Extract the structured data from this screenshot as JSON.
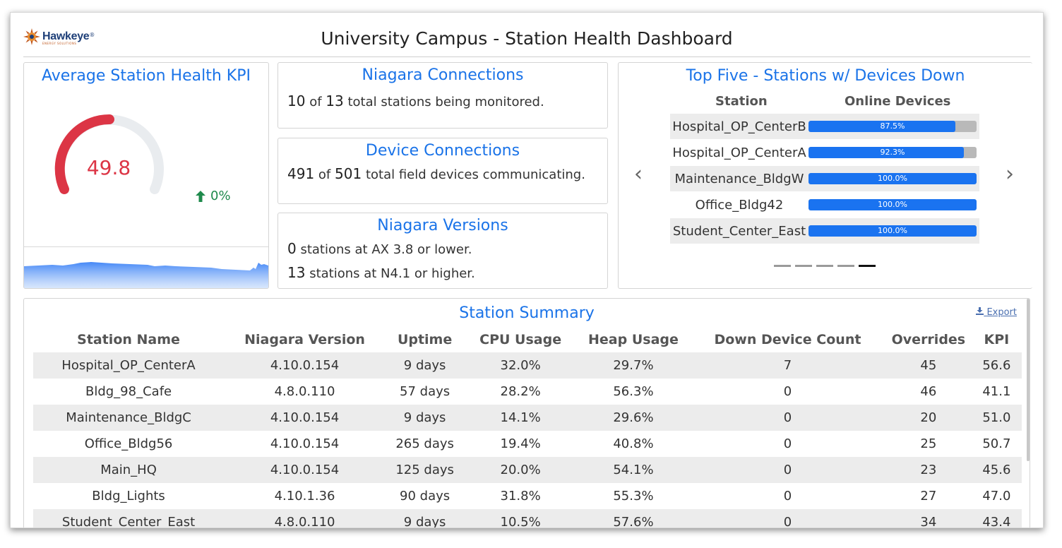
{
  "header": {
    "title": "University Campus - Station Health Dashboard",
    "logo_text": "Hawkeye",
    "logo_tagline": "ENERGY SOLUTIONS",
    "logo_mark": "®"
  },
  "kpi": {
    "title": "Average Station Health KPI",
    "value": "49.8",
    "trend": "0%",
    "gauge_fraction": 0.498
  },
  "niagara_connections": {
    "title": "Niagara Connections",
    "count": "10",
    "of": "of",
    "total": "13",
    "text": "total stations being monitored."
  },
  "device_connections": {
    "title": "Device Connections",
    "count": "491",
    "of": "of",
    "total": "501",
    "text": "total field devices communicating."
  },
  "niagara_versions": {
    "title": "Niagara Versions",
    "line1_count": "0",
    "line1_text": "stations at AX 3.8 or lower.",
    "line2_count": "13",
    "line2_text": "stations at N4.1 or higher."
  },
  "top_five": {
    "title": "Top Five - Stations w/ Devices Down",
    "col_station": "Station",
    "col_online": "Online Devices",
    "rows": [
      {
        "station": "Hospital_OP_CenterB",
        "pct": "87.5%",
        "value": 87.5
      },
      {
        "station": "Hospital_OP_CenterA",
        "pct": "92.3%",
        "value": 92.3
      },
      {
        "station": "Maintenance_BldgW",
        "pct": "100.0%",
        "value": 100
      },
      {
        "station": "Office_Bldg42",
        "pct": "100.0%",
        "value": 100
      },
      {
        "station": "Student_Center_East",
        "pct": "100.0%",
        "value": 100
      }
    ],
    "prev": "‹",
    "next": "›"
  },
  "summary": {
    "title": "Station Summary",
    "export": "Export",
    "columns": [
      "Station Name",
      "Niagara Version",
      "Uptime",
      "CPU Usage",
      "Heap Usage",
      "Down Device Count",
      "Overrides",
      "KPI"
    ],
    "rows": [
      [
        "Hospital_OP_CenterA",
        "4.10.0.154",
        "9 days",
        "32.0%",
        "29.7%",
        "7",
        "45",
        "56.6"
      ],
      [
        "Bldg_98_Cafe",
        "4.8.0.110",
        "57 days",
        "28.2%",
        "56.3%",
        "0",
        "46",
        "41.1"
      ],
      [
        "Maintenance_BldgC",
        "4.10.0.154",
        "9 days",
        "14.1%",
        "29.6%",
        "0",
        "20",
        "51.0"
      ],
      [
        "Office_Bldg56",
        "4.10.0.154",
        "265 days",
        "19.4%",
        "40.8%",
        "0",
        "25",
        "50.7"
      ],
      [
        "Main_HQ",
        "4.10.0.154",
        "125 days",
        "20.0%",
        "54.1%",
        "0",
        "23",
        "45.6"
      ],
      [
        "Bldg_Lights",
        "4.10.1.36",
        "90 days",
        "31.8%",
        "55.3%",
        "0",
        "27",
        "47.0"
      ],
      [
        "Student_Center_East",
        "4.8.0.110",
        "9 days",
        "10.5%",
        "57.6%",
        "0",
        "34",
        "43.4"
      ]
    ]
  },
  "colors": {
    "accent": "#1a73e8",
    "gauge_red": "#dc3545",
    "trend_green": "#1f8a4c",
    "bar_blue": "#1a73f0"
  }
}
